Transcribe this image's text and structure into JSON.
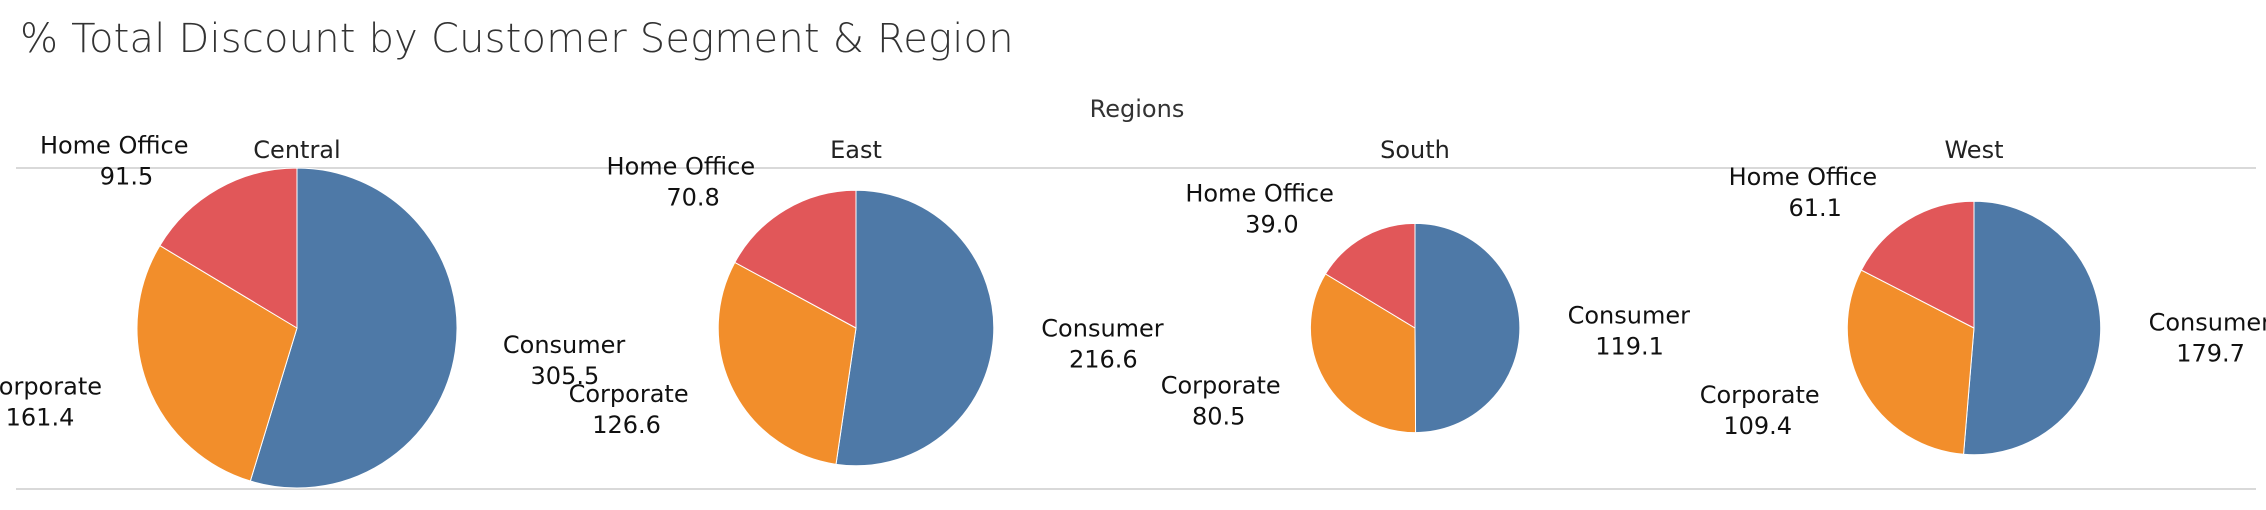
{
  "title": "% Total Discount by Customer Segment & Region",
  "chart_data": {
    "type": "pie",
    "column_header": "Regions",
    "colors": {
      "Consumer": "#4e79a7",
      "Corporate": "#f28e2b",
      "Home Office": "#e15759"
    },
    "segments": [
      "Consumer",
      "Corporate",
      "Home Office"
    ],
    "panels": [
      {
        "region": "Central",
        "values": [
          {
            "segment": "Consumer",
            "value": "305.5"
          },
          {
            "segment": "Corporate",
            "value": "161.4"
          },
          {
            "segment": "Home Office",
            "value": "91.5"
          }
        ]
      },
      {
        "region": "East",
        "values": [
          {
            "segment": "Consumer",
            "value": "216.6"
          },
          {
            "segment": "Corporate",
            "value": "126.6"
          },
          {
            "segment": "Home Office",
            "value": "70.8"
          }
        ]
      },
      {
        "region": "South",
        "values": [
          {
            "segment": "Consumer",
            "value": "119.1"
          },
          {
            "segment": "Corporate",
            "value": "80.5"
          },
          {
            "segment": "Home Office",
            "value": "39.0"
          }
        ]
      },
      {
        "region": "West",
        "values": [
          {
            "segment": "Consumer",
            "value": "179.7"
          },
          {
            "segment": "Corporate",
            "value": "109.4"
          },
          {
            "segment": "Home Office",
            "value": "61.1"
          }
        ]
      }
    ]
  }
}
